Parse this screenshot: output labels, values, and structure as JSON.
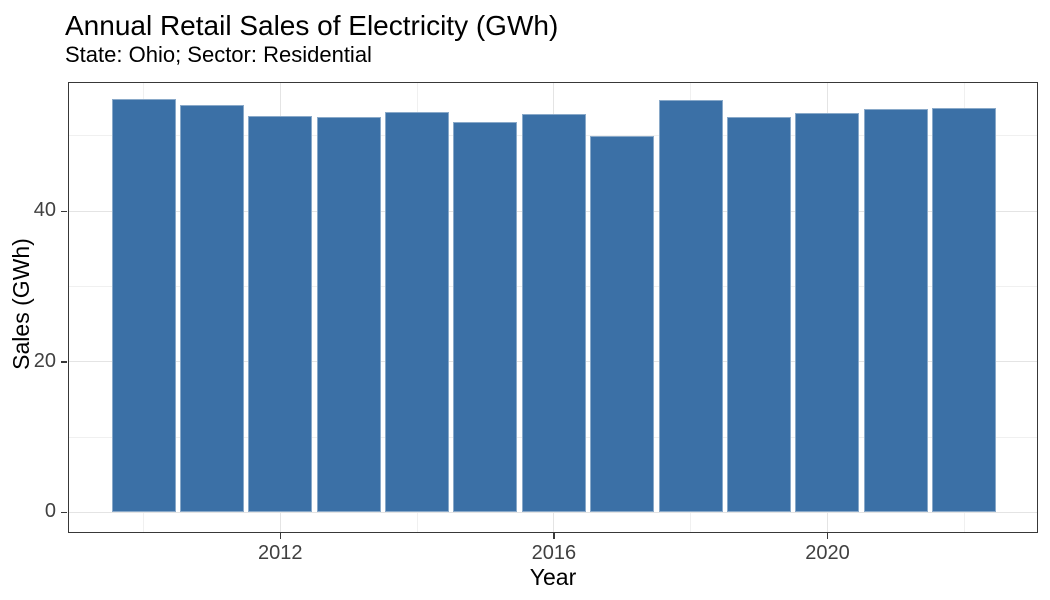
{
  "chart_data": {
    "type": "bar",
    "title": "Annual Retail Sales of Electricity (GWh)",
    "subtitle": "State: Ohio; Sector: Residential",
    "xlabel": "Year",
    "ylabel": "Sales (GWh)",
    "categories": [
      2010,
      2011,
      2012,
      2013,
      2014,
      2015,
      2016,
      2017,
      2018,
      2019,
      2020,
      2021,
      2022
    ],
    "values": [
      54.9,
      54.1,
      52.7,
      52.5,
      53.2,
      51.9,
      52.9,
      50.0,
      54.8,
      52.5,
      53.0,
      53.6,
      53.7
    ],
    "xlim": [
      2008.896,
      2023.078
    ],
    "ylim": [
      -2.73,
      57.17
    ],
    "x_major_ticks": [
      2012,
      2016,
      2020
    ],
    "x_minor_gridlines": [
      2010,
      2014,
      2018,
      2022
    ],
    "y_major_ticks": [
      0,
      20,
      40
    ],
    "y_minor_gridlines": [
      10,
      30,
      50
    ],
    "bar_width_years": 0.936,
    "grid": "major+minor",
    "legend": "none",
    "colors": {
      "bar_fill": "#3B70A6",
      "bar_edge_highlight": "rgba(255,255,255,0.40)",
      "grid_major": "#E4E4E4",
      "grid_minor": "#F0F0F0",
      "panel_border": "#383838",
      "tick_mark": "#383838",
      "tick_label": "#404040",
      "text": "#000000",
      "background": "#FFFFFF"
    }
  }
}
